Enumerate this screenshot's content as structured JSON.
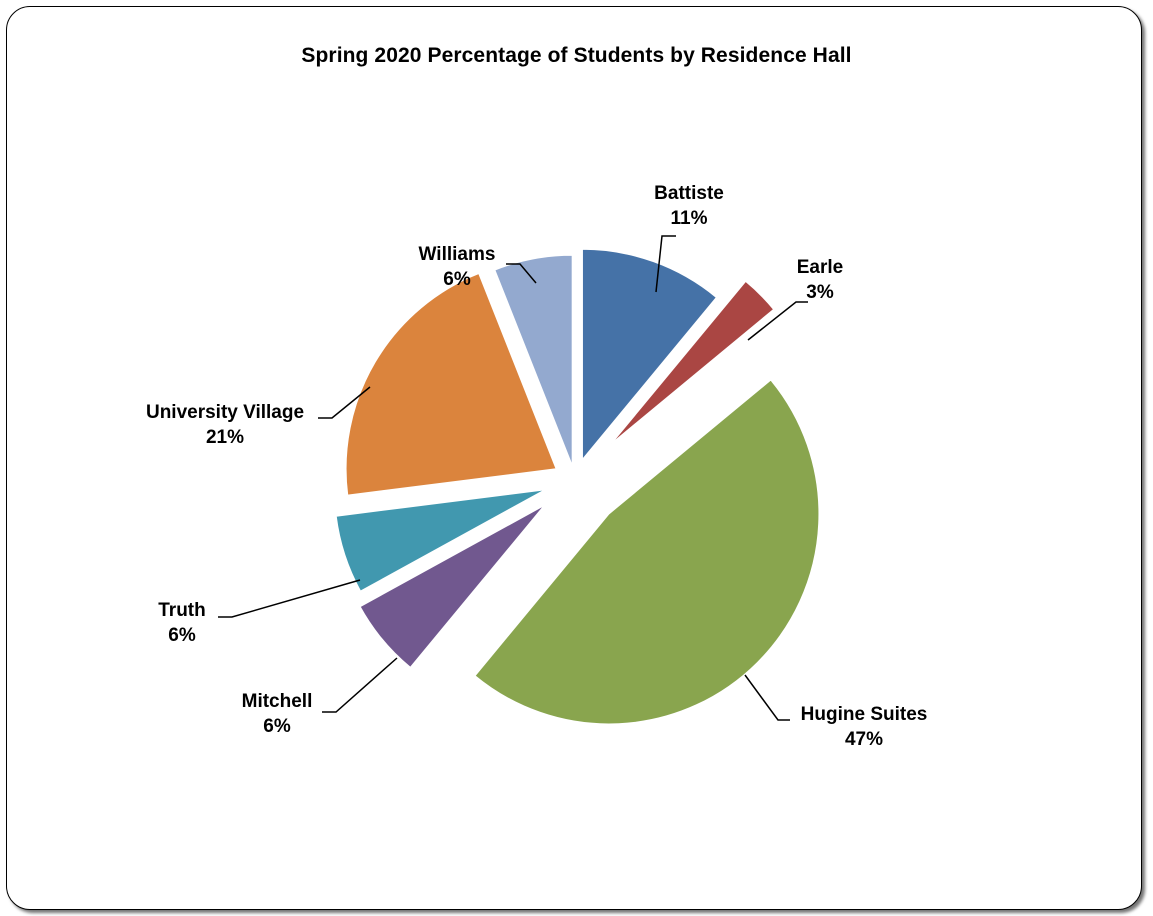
{
  "chart_data": {
    "type": "pie",
    "title": "Spring 2020 Percentage of Students by Residence Hall",
    "exploded": true,
    "legend": "none",
    "slices": [
      {
        "name": "Battiste",
        "value": 11,
        "label": "11%",
        "color": "#4572a7"
      },
      {
        "name": "Earle",
        "value": 3,
        "label": "3%",
        "color": "#aa4643"
      },
      {
        "name": "Hugine Suites",
        "value": 47,
        "label": "47%",
        "color": "#89a54e"
      },
      {
        "name": "Mitchell",
        "value": 6,
        "label": "6%",
        "color": "#71588f"
      },
      {
        "name": "Truth",
        "value": 6,
        "label": "6%",
        "color": "#4198af"
      },
      {
        "name": "University Village",
        "value": 21,
        "label": "21%",
        "color": "#db843d"
      },
      {
        "name": "Williams",
        "value": 6,
        "label": "6%",
        "color": "#93a9cf"
      }
    ]
  }
}
